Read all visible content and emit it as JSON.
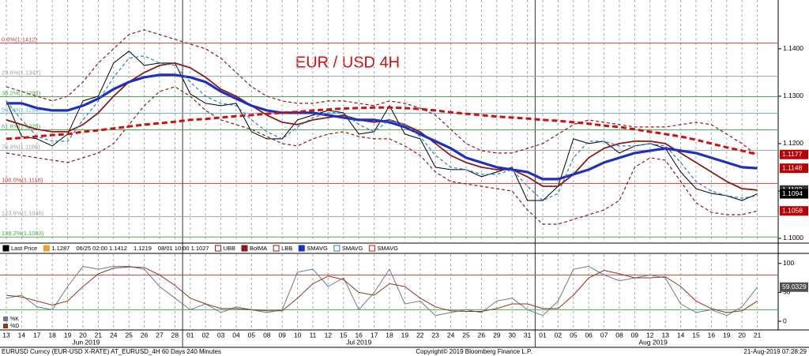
{
  "chart_data": [
    {
      "type": "line",
      "title": "EUR / USD 4H",
      "categories": [
        "13",
        "14",
        "17",
        "18",
        "19",
        "20",
        "21",
        "24",
        "25",
        "26",
        "27",
        "28",
        "01",
        "02",
        "03",
        "04",
        "05",
        "08",
        "09",
        "10",
        "11",
        "12",
        "15",
        "16",
        "17",
        "18",
        "19",
        "22",
        "23",
        "24",
        "25",
        "26",
        "29",
        "30",
        "31",
        "01",
        "02",
        "05",
        "06",
        "07",
        "08",
        "09",
        "12",
        "13",
        "14",
        "15",
        "16",
        "19",
        "20",
        "21"
      ],
      "months": [
        "Jun 2019",
        "Jul 2019",
        "Aug 2019"
      ],
      "ylim": [
        1.099,
        1.1503
      ],
      "yticks": [
        {
          "value": 1.1,
          "label": "1.1000"
        },
        {
          "value": 1.11,
          "label": "1.1100"
        },
        {
          "value": 1.12,
          "label": "1.1200"
        },
        {
          "value": 1.13,
          "label": "1.1300"
        },
        {
          "value": 1.14,
          "label": "1.1400"
        }
      ],
      "grid": true,
      "series": [
        {
          "name": "Last Price",
          "color": "#000000",
          "style": "solid",
          "values": [
            1.129,
            1.1215,
            1.121,
            1.1195,
            1.122,
            1.129,
            1.13,
            1.137,
            1.1395,
            1.1365,
            1.137,
            1.137,
            1.1305,
            1.1285,
            1.128,
            1.1285,
            1.1225,
            1.121,
            1.121,
            1.125,
            1.126,
            1.127,
            1.1265,
            1.122,
            1.1225,
            1.128,
            1.122,
            1.121,
            1.115,
            1.1145,
            1.1145,
            1.113,
            1.114,
            1.115,
            1.108,
            1.108,
            1.111,
            1.121,
            1.12,
            1.1205,
            1.118,
            1.1195,
            1.12,
            1.119,
            1.114,
            1.1105,
            1.1095,
            1.109,
            1.108,
            1.1094
          ]
        },
        {
          "name": "UBB",
          "color": "#8b1a1a",
          "style": "dashed",
          "values": [
            1.132,
            1.131,
            1.13,
            1.129,
            1.13,
            1.133,
            1.137,
            1.14,
            1.143,
            1.144,
            1.143,
            1.142,
            1.141,
            1.14,
            1.138,
            1.135,
            1.132,
            1.13,
            1.129,
            1.1285,
            1.1285,
            1.129,
            1.129,
            1.1285,
            1.128,
            1.129,
            1.1285,
            1.1275,
            1.126,
            1.123,
            1.12,
            1.1185,
            1.118,
            1.118,
            1.119,
            1.12,
            1.122,
            1.124,
            1.125,
            1.1245,
            1.124,
            1.1235,
            1.1235,
            1.1235,
            1.124,
            1.1245,
            1.124,
            1.122,
            1.12,
            1.1175
          ]
        },
        {
          "name": "BolMA",
          "color": "#8b1a1a",
          "style": "medium",
          "values": [
            1.125,
            1.124,
            1.123,
            1.1225,
            1.1225,
            1.124,
            1.1265,
            1.13,
            1.133,
            1.135,
            1.1365,
            1.137,
            1.136,
            1.134,
            1.1315,
            1.13,
            1.128,
            1.126,
            1.1245,
            1.124,
            1.125,
            1.1255,
            1.126,
            1.125,
            1.1245,
            1.125,
            1.124,
            1.1225,
            1.12,
            1.1175,
            1.116,
            1.115,
            1.1145,
            1.1145,
            1.113,
            1.111,
            1.111,
            1.1135,
            1.117,
            1.119,
            1.12,
            1.1205,
            1.1205,
            1.12,
            1.118,
            1.116,
            1.114,
            1.112,
            1.1105,
            1.1102
          ]
        },
        {
          "name": "LBB",
          "color": "#8b1a1a",
          "style": "dashed",
          "values": [
            1.118,
            1.1175,
            1.117,
            1.1165,
            1.116,
            1.117,
            1.118,
            1.12,
            1.124,
            1.128,
            1.131,
            1.132,
            1.13,
            1.127,
            1.125,
            1.124,
            1.123,
            1.1215,
            1.12,
            1.1195,
            1.121,
            1.122,
            1.1225,
            1.1215,
            1.121,
            1.121,
            1.1195,
            1.1175,
            1.114,
            1.112,
            1.1115,
            1.111,
            1.1105,
            1.11,
            1.106,
            1.103,
            1.103,
            1.104,
            1.105,
            1.106,
            1.108,
            1.115,
            1.117,
            1.1165,
            1.112,
            1.1075,
            1.1055,
            1.105,
            1.105,
            1.1058
          ]
        },
        {
          "name": "SMAVG",
          "color": "#1f2fbf",
          "style": "thick",
          "values": [
            1.1285,
            1.1285,
            1.1275,
            1.127,
            1.127,
            1.128,
            1.1295,
            1.1315,
            1.133,
            1.134,
            1.1345,
            1.1345,
            1.134,
            1.133,
            1.131,
            1.1295,
            1.128,
            1.127,
            1.1265,
            1.1265,
            1.1265,
            1.126,
            1.1255,
            1.125,
            1.125,
            1.1245,
            1.1235,
            1.122,
            1.1205,
            1.119,
            1.117,
            1.116,
            1.115,
            1.1145,
            1.114,
            1.1125,
            1.1125,
            1.1135,
            1.1145,
            1.116,
            1.117,
            1.118,
            1.1185,
            1.119,
            1.1185,
            1.118,
            1.117,
            1.116,
            1.115,
            1.1148
          ]
        },
        {
          "name": "SMAVG",
          "color": "#2a7fc0",
          "style": "dashed",
          "values": [
            1.129,
            1.125,
            1.1215,
            1.1205,
            1.1205,
            1.125,
            1.129,
            1.134,
            1.138,
            1.1385,
            1.137,
            1.1365,
            1.133,
            1.13,
            1.1285,
            1.128,
            1.125,
            1.1225,
            1.121,
            1.1235,
            1.1255,
            1.1265,
            1.1265,
            1.124,
            1.1225,
            1.125,
            1.124,
            1.1215,
            1.1175,
            1.115,
            1.1145,
            1.1135,
            1.1135,
            1.1145,
            1.111,
            1.108,
            1.1095,
            1.117,
            1.1205,
            1.1205,
            1.1195,
            1.1195,
            1.12,
            1.1195,
            1.116,
            1.112,
            1.11,
            1.109,
            1.1085,
            1.109
          ]
        },
        {
          "name": "SMAVG",
          "color": "#d01010",
          "style": "thick-dashed",
          "values": [
            1.121,
            1.1212,
            1.1215,
            1.1218,
            1.122,
            1.1225,
            1.1228,
            1.1232,
            1.1236,
            1.124,
            1.1243,
            1.1246,
            1.125,
            1.1252,
            1.1255,
            1.1258,
            1.126,
            1.1263,
            1.1265,
            1.1267,
            1.127,
            1.1272,
            1.1274,
            1.1275,
            1.1276,
            1.1276,
            1.1275,
            1.1273,
            1.127,
            1.1266,
            1.1263,
            1.126,
            1.1257,
            1.1255,
            1.1253,
            1.125,
            1.1248,
            1.1245,
            1.1242,
            1.1238,
            1.1235,
            1.123,
            1.1225,
            1.122,
            1.1215,
            1.1208,
            1.12,
            1.1192,
            1.1185,
            1.1177
          ]
        }
      ],
      "legend_notes": [
        {
          "label": "1.1287",
          "color": "#f0a030"
        },
        {
          "label": "06/25 02:00 1.1412"
        },
        {
          "label": "1.1219"
        },
        {
          "label": "08/01 10:00 1.1027"
        }
      ],
      "fib_levels": [
        {
          "value": 1.1412,
          "label": "0.0%(1.1412)",
          "color": "#c04040"
        },
        {
          "value": 1.1342,
          "label": "23.6%(1.1342)",
          "color": "#a0a0a0"
        },
        {
          "value": 1.1299,
          "label": "38.2%(1.1299)",
          "color": "#4aa84a"
        },
        {
          "value": 1.1264,
          "label": "50.0%(1.1264)",
          "color": "#6ab0d8"
        },
        {
          "value": 1.1229,
          "label": "61.8%(1.1229)",
          "color": "#4aa84a"
        },
        {
          "value": 1.1186,
          "label": "76.4%(1.1186)",
          "color": "#a0a0a0"
        },
        {
          "value": 1.1116,
          "label": "100.0%(1.1116)",
          "color": "#c04040"
        },
        {
          "value": 1.1046,
          "label": "123.6%(1.1046)",
          "color": "#a0a0a0"
        },
        {
          "value": 1.1003,
          "label": "138.2%(1.1003)",
          "color": "#4aa84a"
        }
      ],
      "last_labels": [
        {
          "value": 1.1177,
          "color": "#c00000"
        },
        {
          "value": 1.1148,
          "color": "#c00000"
        },
        {
          "value": 1.1102,
          "color": "#333333"
        },
        {
          "value": 1.1094,
          "color": "#000000"
        },
        {
          "value": 1.1058,
          "color": "#c00000"
        }
      ]
    },
    {
      "type": "line",
      "ylim": [
        -15,
        116
      ],
      "yticks": [
        0,
        50,
        100
      ],
      "levels": [
        {
          "value": 80,
          "color": "#c04040"
        },
        {
          "value": 20,
          "color": "#4aa84a"
        }
      ],
      "series": [
        {
          "name": "%K",
          "color": "#6a7a90",
          "style": "solid",
          "values": [
            40,
            45,
            25,
            20,
            60,
            95,
            90,
            95,
            95,
            90,
            60,
            40,
            20,
            30,
            15,
            25,
            20,
            15,
            20,
            85,
            90,
            60,
            75,
            20,
            50,
            90,
            30,
            35,
            10,
            15,
            20,
            15,
            35,
            40,
            20,
            10,
            35,
            90,
            95,
            80,
            70,
            75,
            80,
            75,
            30,
            15,
            20,
            10,
            25,
            59.0329
          ]
        },
        {
          "name": "%D",
          "color": "#8b3a1a",
          "style": "solid",
          "values": [
            45,
            42,
            35,
            28,
            35,
            60,
            82,
            92,
            94,
            93,
            80,
            62,
            40,
            30,
            22,
            22,
            20,
            18,
            18,
            40,
            65,
            78,
            72,
            50,
            45,
            65,
            60,
            40,
            25,
            18,
            17,
            17,
            22,
            30,
            30,
            22,
            22,
            45,
            75,
            88,
            82,
            75,
            75,
            77,
            60,
            35,
            22,
            15,
            18,
            35
          ]
        }
      ],
      "last_labels": [
        {
          "value": 59.0329,
          "color": "#505050"
        }
      ]
    }
  ],
  "footer": {
    "left": "EURUSD Curncy (EUR-USD X-RATE) AT_EURUSD_4H 60 Days 240 Minutes",
    "center": "Copyright© 2019 Bloomberg Finance L.P.",
    "right": "21-Aug-2019 07:28:29"
  }
}
